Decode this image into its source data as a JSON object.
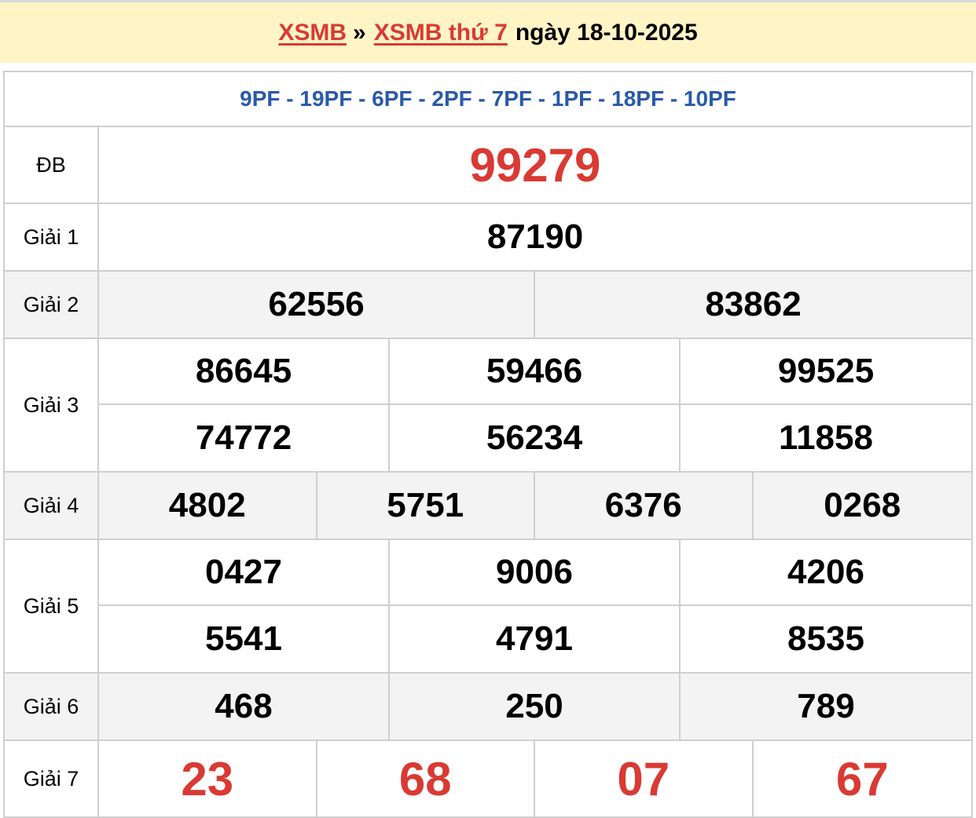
{
  "header": {
    "link1": "XSMB",
    "separator": "»",
    "link2": "XSMB thứ 7",
    "date_text": "ngày 18-10-2025"
  },
  "codes": "9PF - 19PF - 6PF - 2PF - 7PF - 1PF - 18PF - 10PF",
  "colors": {
    "red": "#d93a33",
    "blue": "#2a5aa8",
    "header_bg": "#fef4c5",
    "alt_row": "#f3f3f3"
  },
  "prizes": [
    {
      "label": "ĐB",
      "cols": 1,
      "numbers": [
        "99279"
      ],
      "style": "red-big"
    },
    {
      "label": "Giải 1",
      "cols": 1,
      "numbers": [
        "87190"
      ]
    },
    {
      "label": "Giải 2",
      "cols": 2,
      "numbers": [
        "62556",
        "83862"
      ],
      "alt": true
    },
    {
      "label": "Giải 3",
      "cols": 3,
      "numbers": [
        "86645",
        "59466",
        "99525",
        "74772",
        "56234",
        "11858"
      ]
    },
    {
      "label": "Giải 4",
      "cols": 4,
      "numbers": [
        "4802",
        "5751",
        "6376",
        "0268"
      ],
      "alt": true
    },
    {
      "label": "Giải 5",
      "cols": 3,
      "numbers": [
        "0427",
        "9006",
        "4206",
        "5541",
        "4791",
        "8535"
      ]
    },
    {
      "label": "Giải 6",
      "cols": 3,
      "numbers": [
        "468",
        "250",
        "789"
      ],
      "alt": true
    },
    {
      "label": "Giải 7",
      "cols": 4,
      "numbers": [
        "23",
        "68",
        "07",
        "67"
      ],
      "style": "red-big"
    }
  ]
}
